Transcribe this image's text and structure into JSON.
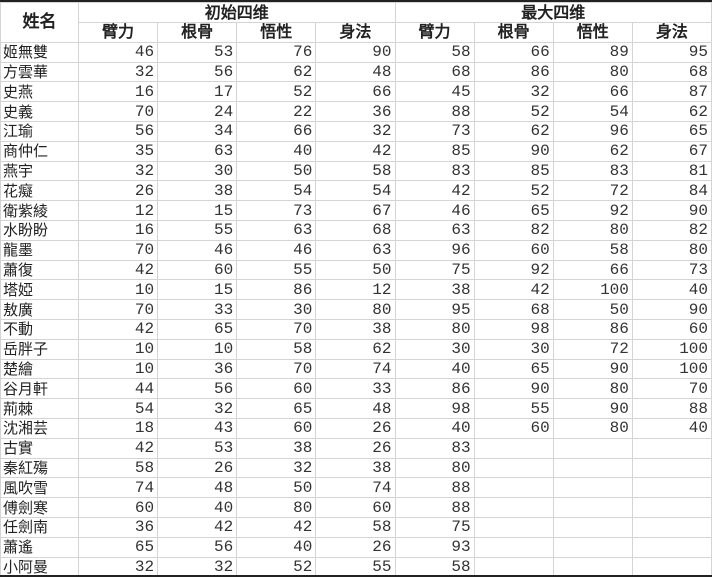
{
  "header": {
    "name": "姓名",
    "groups": [
      "初始四维",
      "最大四维"
    ],
    "stats": [
      "臂力",
      "根骨",
      "悟性",
      "身法"
    ]
  },
  "rows": [
    {
      "name": "姬無雙",
      "init": [
        46,
        53,
        76,
        90
      ],
      "max": [
        58,
        66,
        89,
        95
      ]
    },
    {
      "name": "方雲華",
      "init": [
        32,
        56,
        62,
        48
      ],
      "max": [
        68,
        86,
        80,
        68
      ]
    },
    {
      "name": "史燕",
      "init": [
        16,
        17,
        52,
        66
      ],
      "max": [
        45,
        32,
        66,
        87
      ]
    },
    {
      "name": "史義",
      "init": [
        70,
        24,
        22,
        36
      ],
      "max": [
        88,
        52,
        54,
        62
      ]
    },
    {
      "name": "江瑜",
      "init": [
        56,
        34,
        66,
        32
      ],
      "max": [
        73,
        62,
        96,
        65
      ]
    },
    {
      "name": "商仲仁",
      "init": [
        35,
        63,
        40,
        42
      ],
      "max": [
        85,
        90,
        62,
        67
      ]
    },
    {
      "name": "燕宇",
      "init": [
        32,
        30,
        50,
        58
      ],
      "max": [
        83,
        85,
        83,
        81
      ]
    },
    {
      "name": "花癡",
      "init": [
        26,
        38,
        54,
        54
      ],
      "max": [
        42,
        52,
        72,
        84
      ]
    },
    {
      "name": "衛紫綾",
      "init": [
        12,
        15,
        73,
        67
      ],
      "max": [
        46,
        65,
        92,
        90
      ]
    },
    {
      "name": "水盼盼",
      "init": [
        16,
        55,
        63,
        68
      ],
      "max": [
        63,
        82,
        80,
        82
      ]
    },
    {
      "name": "龍墨",
      "init": [
        70,
        46,
        46,
        63
      ],
      "max": [
        96,
        60,
        58,
        80
      ]
    },
    {
      "name": "蕭復",
      "init": [
        42,
        60,
        55,
        50
      ],
      "max": [
        75,
        92,
        66,
        73
      ]
    },
    {
      "name": "塔婭",
      "init": [
        10,
        15,
        86,
        12
      ],
      "max": [
        38,
        42,
        100,
        40
      ]
    },
    {
      "name": "敖廣",
      "init": [
        70,
        33,
        30,
        80
      ],
      "max": [
        95,
        68,
        50,
        90
      ]
    },
    {
      "name": "不動",
      "init": [
        42,
        65,
        70,
        38
      ],
      "max": [
        80,
        98,
        86,
        60
      ]
    },
    {
      "name": "岳胖子",
      "init": [
        10,
        10,
        58,
        62
      ],
      "max": [
        30,
        30,
        72,
        100
      ]
    },
    {
      "name": "楚繪",
      "init": [
        10,
        36,
        70,
        74
      ],
      "max": [
        40,
        65,
        90,
        100
      ]
    },
    {
      "name": "谷月軒",
      "init": [
        44,
        56,
        60,
        33
      ],
      "max": [
        86,
        90,
        80,
        70
      ]
    },
    {
      "name": "荊棘",
      "init": [
        54,
        32,
        65,
        48
      ],
      "max": [
        98,
        55,
        90,
        88
      ]
    },
    {
      "name": "沈湘芸",
      "init": [
        18,
        43,
        60,
        26
      ],
      "max": [
        40,
        60,
        80,
        40
      ]
    },
    {
      "name": "古實",
      "init": [
        42,
        53,
        38,
        26
      ],
      "max": [
        83,
        null,
        null,
        null
      ]
    },
    {
      "name": "秦紅殤",
      "init": [
        58,
        26,
        32,
        38
      ],
      "max": [
        80,
        null,
        null,
        null
      ]
    },
    {
      "name": "風吹雪",
      "init": [
        74,
        48,
        50,
        74
      ],
      "max": [
        88,
        null,
        null,
        null
      ]
    },
    {
      "name": "傅劍寒",
      "init": [
        60,
        40,
        80,
        60
      ],
      "max": [
        88,
        null,
        null,
        null
      ]
    },
    {
      "name": "任劍南",
      "init": [
        36,
        42,
        42,
        58
      ],
      "max": [
        75,
        null,
        null,
        null
      ]
    },
    {
      "name": "蕭遙",
      "init": [
        65,
        56,
        40,
        26
      ],
      "max": [
        93,
        null,
        null,
        null
      ]
    },
    {
      "name": "小阿曼",
      "init": [
        32,
        32,
        52,
        55
      ],
      "max": [
        58,
        null,
        null,
        null
      ]
    }
  ]
}
